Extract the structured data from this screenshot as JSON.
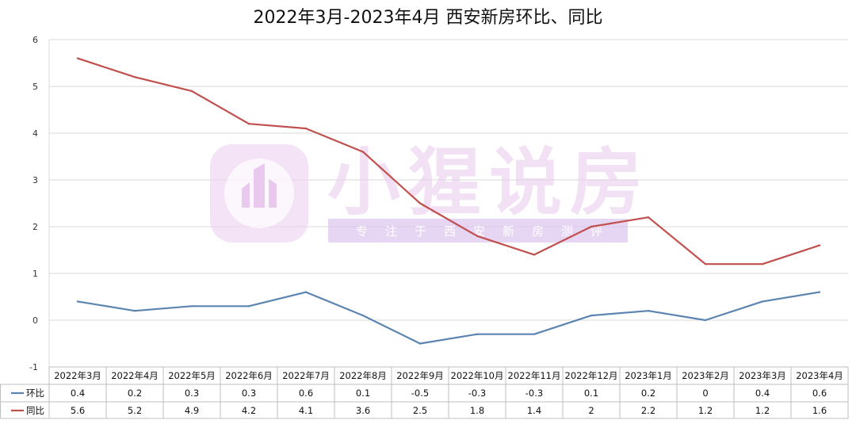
{
  "chart_data": {
    "type": "line",
    "title": "2022年3月-2023年4月  西安新房环比、同比",
    "categories": [
      "2022年3月",
      "2022年4月",
      "2022年5月",
      "2022年6月",
      "2022年7月",
      "2022年8月",
      "2022年9月",
      "2022年10月",
      "2022年11月",
      "2022年12月",
      "2023年1月",
      "2023年2月",
      "2023年3月",
      "2023年4月"
    ],
    "series": [
      {
        "name": "环比",
        "color": "#5b84b1",
        "values": [
          0.4,
          0.2,
          0.3,
          0.3,
          0.6,
          0.1,
          -0.5,
          -0.3,
          -0.3,
          0.1,
          0.2,
          0,
          0.4,
          0.6
        ]
      },
      {
        "name": "同比",
        "color": "#c0504d",
        "values": [
          5.6,
          5.2,
          4.9,
          4.2,
          4.1,
          3.6,
          2.5,
          1.8,
          1.4,
          2,
          2.2,
          1.2,
          1.2,
          1.6
        ]
      }
    ],
    "ylim": [
      -1,
      6
    ],
    "yticks": [
      -1,
      0,
      1,
      2,
      3,
      4,
      5,
      6
    ],
    "grid": true,
    "legend": "data-table"
  },
  "watermark": {
    "brand": "小猩说房",
    "slogan": "专注于西安新房测评",
    "color": "#e9c7ee"
  }
}
